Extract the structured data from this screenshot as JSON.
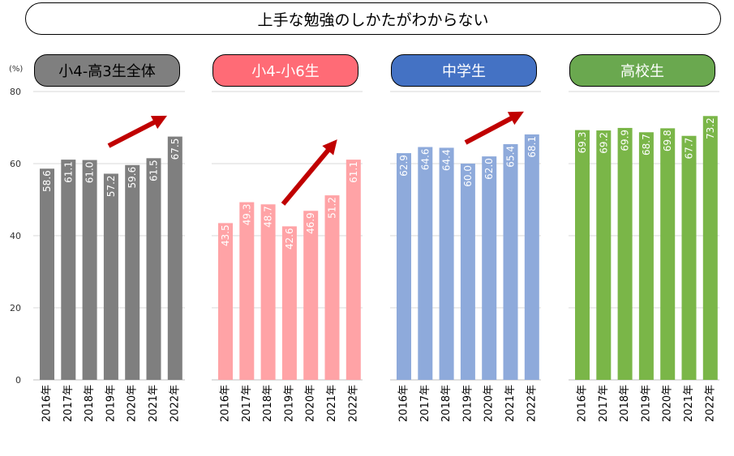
{
  "title": "上手な勉強のしかたがわからない",
  "unit": "(%)",
  "colors": {
    "panel_bars": [
      "#7f7f7f",
      "#ffa3a6",
      "#8eaadb",
      "#7ab648"
    ],
    "panel_label_bg": [
      "#7f7f7f",
      "#ff6b76",
      "#4472c4",
      "#6aa84f"
    ],
    "panel_label_text": [
      "#000000",
      "#ffffff",
      "#ffffff",
      "#ffffff"
    ],
    "arrow": "#c00000",
    "grid": "#d9d9d9"
  },
  "chart_data": {
    "type": "bar",
    "title": "上手な勉強のしかたがわからない",
    "ylabel": "(%)",
    "ylim": [
      0,
      80
    ],
    "yticks": [
      "0",
      "20",
      "40",
      "60",
      "80"
    ],
    "grid": true,
    "categories": [
      "2016年",
      "2017年",
      "2018年",
      "2019年",
      "2020年",
      "2021年",
      "2022年"
    ],
    "series": [
      {
        "name": "小4-高3生全体",
        "values": [
          58.6,
          61.1,
          61.0,
          57.2,
          59.6,
          61.5,
          67.5
        ],
        "labels": [
          "58.6",
          "61.1",
          "61.0",
          "57.2",
          "59.6",
          "61.5",
          "67.5"
        ],
        "trend_arrow": true
      },
      {
        "name": "小4-小6生",
        "values": [
          43.5,
          49.3,
          48.7,
          42.6,
          46.9,
          51.2,
          61.1
        ],
        "labels": [
          "43.5",
          "49.3",
          "48.7",
          "42.6",
          "46.9",
          "51.2",
          "61.1"
        ],
        "trend_arrow": true
      },
      {
        "name": "中学生",
        "values": [
          62.9,
          64.6,
          64.4,
          60.0,
          62.0,
          65.4,
          68.1
        ],
        "labels": [
          "62.9",
          "64.6",
          "64.4",
          "60.0",
          "62.0",
          "65.4",
          "68.1"
        ],
        "trend_arrow": true
      },
      {
        "name": "高校生",
        "values": [
          69.3,
          69.2,
          69.9,
          68.7,
          69.8,
          67.7,
          73.2
        ],
        "labels": [
          "69.3",
          "69.2",
          "69.9",
          "68.7",
          "69.8",
          "67.7",
          "73.2"
        ],
        "trend_arrow": false
      }
    ]
  }
}
